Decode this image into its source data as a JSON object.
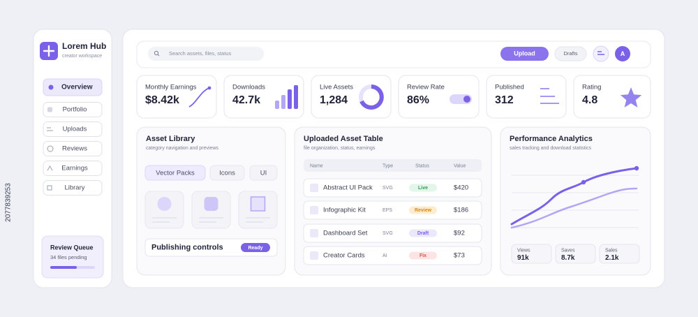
{
  "sidebar": {
    "brand": "Lorem Hub",
    "tagline": "creator workspace",
    "nav": [
      "Overview",
      "Portfolio",
      "Uploads",
      "Reviews",
      "Earnings",
      "Library"
    ],
    "queue": {
      "title": "Review Queue",
      "status": "34 files pending"
    }
  },
  "topbar": {
    "search_placeholder": "Search assets, files, status",
    "upload": "Upload",
    "drafts": "Drafts",
    "avatar": "A"
  },
  "stats": [
    {
      "label": "Monthly Earnings",
      "value": "$8.42k"
    },
    {
      "label": "Downloads",
      "value": "42.7k"
    },
    {
      "label": "Live Assets",
      "value": "1,284"
    },
    {
      "label": "Review Rate",
      "value": "86%"
    },
    {
      "label": "Published",
      "value": "312"
    },
    {
      "label": "Rating",
      "value": "4.8"
    }
  ],
  "library": {
    "title": "Asset Library",
    "subtitle": "category navigation and previews",
    "tabs": [
      "Vector Packs",
      "Icons",
      "UI"
    ],
    "controls": "Publishing controls",
    "controls_status": "Ready"
  },
  "table": {
    "title": "Uploaded Asset Table",
    "subtitle": "file organization, status, earnings",
    "columns": [
      "Name",
      "Type",
      "Status",
      "Value"
    ],
    "rows": [
      [
        "Abstract UI Pack",
        "SVG",
        "Live",
        "$420"
      ],
      [
        "Infographic Kit",
        "EPS",
        "Review",
        "$186"
      ],
      [
        "Dashboard Set",
        "SVG",
        "Draft",
        "$92"
      ],
      [
        "Creator Cards",
        "AI",
        "Fix",
        "$73"
      ]
    ]
  },
  "analytics": {
    "title": "Performance Analytics",
    "subtitle": "sales tracking and download statistics",
    "metrics": [
      {
        "label": "Views",
        "value": "91k"
      },
      {
        "label": "Saves",
        "value": "8.7k"
      },
      {
        "label": "Sales",
        "value": "2.1k"
      }
    ]
  },
  "watermark": "2077839253"
}
